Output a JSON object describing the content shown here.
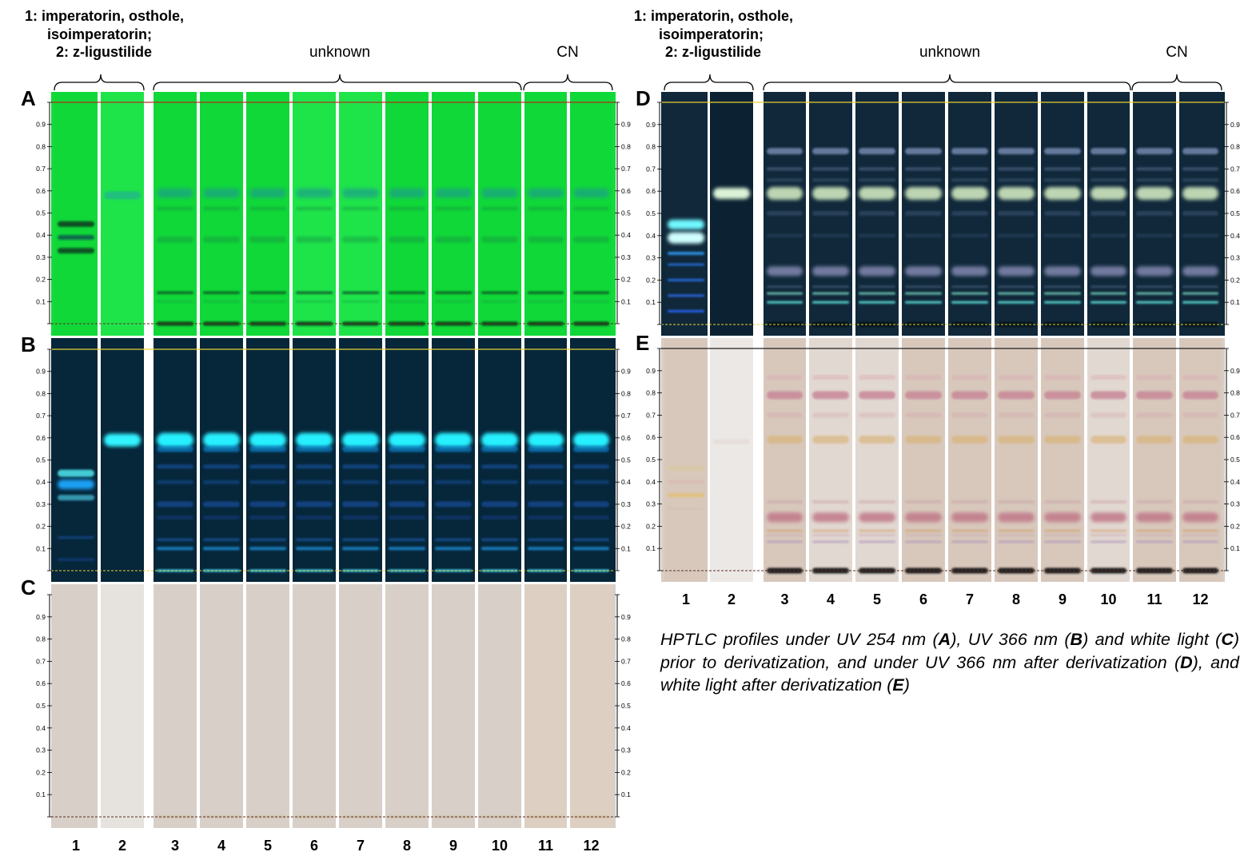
{
  "headers": {
    "left": {
      "ref_lines": [
        "1: imperatorin, osthole,",
        "isoimperatorin;",
        "2: z-ligustilide"
      ],
      "unknown": "unknown",
      "cn": "CN"
    },
    "right": {
      "ref_lines": [
        "1: imperatorin, osthole,",
        "isoimperatorin;",
        "2: z-ligustilide"
      ],
      "unknown": "unknown",
      "cn": "CN"
    }
  },
  "panel_labels": {
    "A": "A",
    "B": "B",
    "C": "C",
    "D": "D",
    "E": "E"
  },
  "lanes": [
    "1",
    "2",
    "3",
    "4",
    "5",
    "6",
    "7",
    "8",
    "9",
    "10",
    "11",
    "12"
  ],
  "rf_ticks": [
    "0.1",
    "0.2",
    "0.3",
    "0.4",
    "0.5",
    "0.6",
    "0.7",
    "0.8",
    "0.9"
  ],
  "caption": {
    "p1": "HPTLC profiles under UV 254 nm (",
    "A": "A",
    "p2": "), UV 366 nm (",
    "B": "B",
    "p3": ") and white light (",
    "C": "C",
    "p4": ") prior to derivatization, and under UV 366 nm after derivatization (",
    "D": "D",
    "p5": "), and white light after derivatization (",
    "E": "E",
    "p6": ")"
  },
  "colors": {
    "uv254_plate": "#12dc3a",
    "uv366_plate": "#06263a",
    "white_plate": "#d8cfc8",
    "deriv366_plate": "#0d2838",
    "deriv_white_plate": "#d9cdc4",
    "front_line_red": "#b0301d",
    "front_line_yellow": "#e8d232"
  }
}
